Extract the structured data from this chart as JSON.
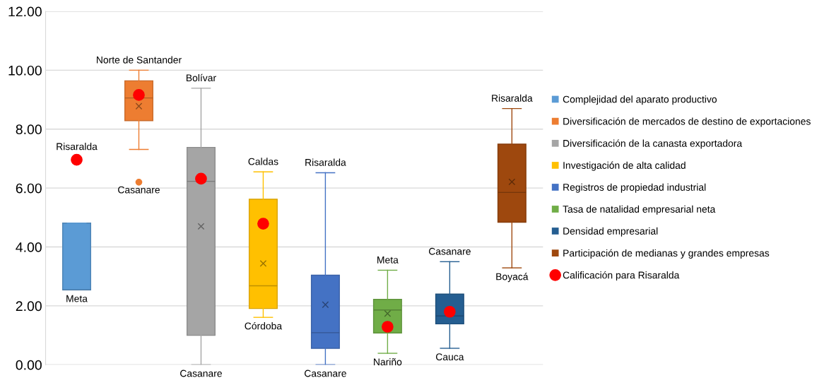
{
  "chart_data": {
    "type": "box",
    "categories": [
      null,
      null,
      null,
      null,
      null,
      null,
      null,
      null
    ],
    "series": [
      {
        "name": "Complejidad del aparato productivo",
        "color": "#5b9bd5",
        "boxes": [
          {
            "low": 2.54,
            "q1": 2.54,
            "median": 2.54,
            "q3": 4.81,
            "high": 4.81
          },
          null,
          null,
          null,
          null,
          null,
          null,
          null
        ]
      },
      {
        "name": "Diversificación de mercados de destino de exportaciones",
        "color": "#ed7d31",
        "boxes": [
          null,
          {
            "low": 7.31,
            "q1": 8.29,
            "median": 9.06,
            "q3": 9.64,
            "high": 10.0,
            "mean": 8.78,
            "outliers": [
              6.2
            ]
          },
          null,
          null,
          null,
          null,
          null,
          null
        ]
      },
      {
        "name": "Diversificación de la canasta exportadora",
        "color": "#a5a5a5",
        "boxes": [
          null,
          null,
          {
            "low": 0.0,
            "q1": 1.0,
            "median": 6.23,
            "q3": 7.38,
            "high": 9.39,
            "mean": 4.7
          },
          null,
          null,
          null,
          null,
          null
        ]
      },
      {
        "name": "Investigación de alta calidad",
        "color": "#ffc000",
        "boxes": [
          null,
          null,
          null,
          {
            "low": 1.61,
            "q1": 1.91,
            "median": 2.68,
            "q3": 5.62,
            "high": 6.55,
            "mean": 3.44
          },
          null,
          null,
          null,
          null
        ]
      },
      {
        "name": "Registros de propiedad industrial",
        "color": "#4472c4",
        "boxes": [
          null,
          null,
          null,
          null,
          {
            "low": 0.0,
            "q1": 0.56,
            "median": 1.09,
            "q3": 3.04,
            "high": 6.52,
            "mean": 2.04
          },
          null,
          null,
          null
        ]
      },
      {
        "name": "Tasa de natalidad empresarial neta",
        "color": "#70ad47",
        "boxes": [
          null,
          null,
          null,
          null,
          null,
          {
            "low": 0.39,
            "q1": 1.08,
            "median": 1.86,
            "q3": 2.22,
            "high": 3.21,
            "mean": 1.74
          },
          null,
          null
        ]
      },
      {
        "name": "Densidad empresarial",
        "color": "#255e91",
        "boxes": [
          null,
          null,
          null,
          null,
          null,
          null,
          {
            "low": 0.56,
            "q1": 1.39,
            "median": 1.66,
            "q3": 2.4,
            "high": 3.5
          },
          null
        ]
      },
      {
        "name": "Participación de medianas y grandes empresas",
        "color": "#9e480e",
        "boxes": [
          null,
          null,
          null,
          null,
          null,
          null,
          null,
          {
            "low": 3.29,
            "q1": 4.84,
            "median": 5.85,
            "q3": 7.49,
            "high": 8.7,
            "mean": 6.21
          }
        ]
      },
      {
        "type": "scatter",
        "name": "Calificación para Risaralda",
        "color": "#ff0000",
        "values": [
          6.96,
          9.16,
          6.32,
          4.79,
          null,
          1.29,
          1.8,
          null
        ]
      }
    ],
    "ylim": [
      0,
      12
    ],
    "yticks": [
      {
        "value": 0,
        "label": "0.00"
      },
      {
        "value": 2,
        "label": "2.00"
      },
      {
        "value": 4,
        "label": "4.00"
      },
      {
        "value": 6,
        "label": "6.00"
      },
      {
        "value": 8,
        "label": "8.00"
      },
      {
        "value": 10,
        "label": "10.00"
      },
      {
        "value": 12,
        "label": "12.00"
      }
    ],
    "annotations": [
      {
        "text": "Risaralda",
        "y": 6.96
      },
      {
        "text": "Meta",
        "y": 2.54
      },
      {
        "text": "Norte de Santander",
        "y": 10.0
      },
      "Casanare",
      {
        "text": "Bolívar",
        "y": 9.39
      },
      {
        "text": "Casanare",
        "y": 0.0
      },
      {
        "text": "Caldas",
        "y": 6.55
      },
      {
        "text": "Córdoba",
        "y": 1.61
      },
      {
        "text": "Risaralda",
        "y": 6.52
      },
      {
        "text": "Casanare",
        "y": 0.0
      },
      {
        "text": "Meta",
        "y": 3.21
      },
      {
        "text": "Nariño",
        "y": 0.39
      },
      {
        "text": "Casanare",
        "y": 3.5
      },
      {
        "text": "Cauca",
        "y": 0.56
      },
      {
        "text": "Risaralda",
        "y": 8.7
      },
      {
        "text": "Boyacá",
        "y": 3.29
      }
    ],
    "grid": "y",
    "legend": "right",
    "marker": "circle"
  }
}
